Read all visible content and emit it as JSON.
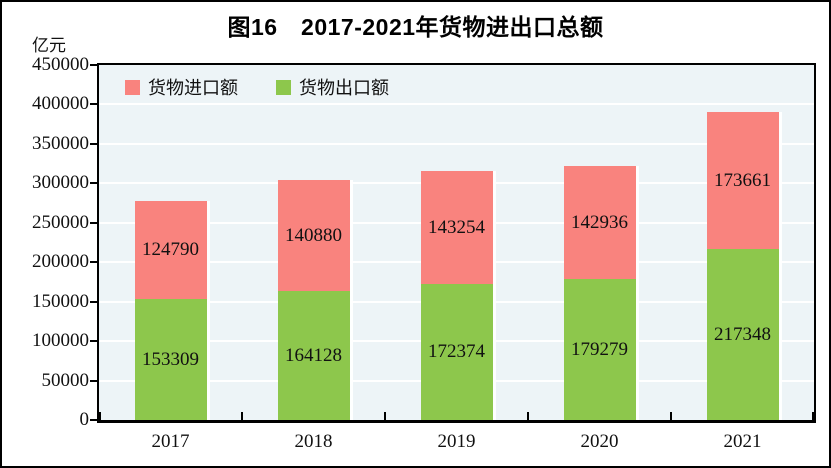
{
  "title": "图16　2017-2021年货物进出口总额",
  "unit_label": "亿元",
  "legend": [
    {
      "label": "货物进口额",
      "color": "#F9837E"
    },
    {
      "label": "货物出口额",
      "color": "#8DC74C"
    }
  ],
  "chart_data": {
    "type": "bar",
    "stacked": true,
    "title": "图16　2017-2021年货物进出口总额",
    "ylabel": "亿元",
    "categories": [
      "2017",
      "2018",
      "2019",
      "2020",
      "2021"
    ],
    "series": [
      {
        "name": "货物出口额",
        "color": "#8DC74C",
        "values": [
          153309,
          164128,
          172374,
          179279,
          217348
        ]
      },
      {
        "name": "货物进口额",
        "color": "#F9837E",
        "values": [
          124790,
          140880,
          143254,
          142936,
          173661
        ]
      }
    ],
    "ylim": [
      0,
      450000
    ],
    "ytick_step": 50000,
    "grid": true,
    "gridline_color": "#FFFFFF",
    "plot_bg": "#EDF4F7",
    "legend_position": "top-left-inside",
    "value_labels": true
  }
}
